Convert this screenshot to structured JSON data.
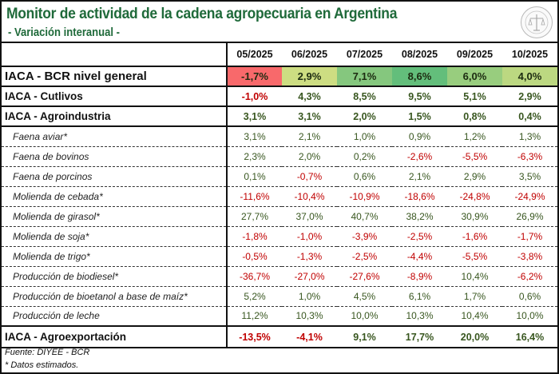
{
  "header": {
    "title": "Monitor de actividad de la cadena agropecuaria en Argentina",
    "subtitle": "- Variación interanual -"
  },
  "table": {
    "columns": [
      "05/2025",
      "06/2025",
      "07/2025",
      "08/2025",
      "09/2025",
      "10/2025"
    ],
    "general": {
      "label": "IACA - BCR nivel general",
      "values": [
        "-1,7%",
        "2,9%",
        "7,1%",
        "8,6%",
        "6,0%",
        "4,0%"
      ],
      "colors": [
        "#f8696b",
        "#cddd82",
        "#85c77e",
        "#63be7b",
        "#98cd7e",
        "#bcd881"
      ]
    },
    "rows": [
      {
        "label": "IACA - Cutlivos",
        "type": "main",
        "values": [
          "-1,0%",
          "4,3%",
          "8,5%",
          "9,5%",
          "5,1%",
          "2,9%"
        ]
      },
      {
        "label": "IACA - Agroindustria",
        "type": "main",
        "values": [
          "3,1%",
          "3,1%",
          "2,0%",
          "1,5%",
          "0,8%",
          "0,4%"
        ]
      },
      {
        "label": "Faena aviar*",
        "type": "sub",
        "values": [
          "3,1%",
          "2,1%",
          "1,0%",
          "0,9%",
          "1,2%",
          "1,3%"
        ]
      },
      {
        "label": "Faena de bovinos",
        "type": "sub",
        "values": [
          "2,3%",
          "2,0%",
          "0,2%",
          "-2,6%",
          "-5,5%",
          "-6,3%"
        ]
      },
      {
        "label": "Faena de porcinos",
        "type": "sub",
        "values": [
          "0,1%",
          "-0,7%",
          "0,6%",
          "2,1%",
          "2,9%",
          "3,5%"
        ]
      },
      {
        "label": "Molienda de cebada*",
        "type": "sub",
        "values": [
          "-11,6%",
          "-10,4%",
          "-10,9%",
          "-18,6%",
          "-24,8%",
          "-24,9%"
        ]
      },
      {
        "label": "Molienda de girasol*",
        "type": "sub",
        "values": [
          "27,7%",
          "37,0%",
          "40,7%",
          "38,2%",
          "30,9%",
          "26,9%"
        ]
      },
      {
        "label": "Molienda de soja*",
        "type": "sub",
        "values": [
          "-1,8%",
          "-1,0%",
          "-3,9%",
          "-2,5%",
          "-1,6%",
          "-1,7%"
        ]
      },
      {
        "label": "Molienda de trigo*",
        "type": "sub",
        "values": [
          "-0,5%",
          "-1,3%",
          "-2,5%",
          "-4,4%",
          "-5,5%",
          "-3,8%"
        ]
      },
      {
        "label": "Producción de biodiesel*",
        "type": "sub",
        "values": [
          "-36,7%",
          "-27,0%",
          "-27,6%",
          "-8,9%",
          "10,4%",
          "-6,2%"
        ]
      },
      {
        "label": "Producción de bioetanol a base de maíz*",
        "type": "sub",
        "values": [
          "5,2%",
          "1,0%",
          "4,5%",
          "6,1%",
          "1,7%",
          "0,6%"
        ]
      },
      {
        "label": "Producción de leche",
        "type": "sub-last",
        "values": [
          "11,2%",
          "10,3%",
          "10,0%",
          "10,3%",
          "10,4%",
          "10,0%"
        ]
      },
      {
        "label": "IACA - Agroexportación",
        "type": "export",
        "values": [
          "-13,5%",
          "-4,1%",
          "9,1%",
          "17,7%",
          "20,0%",
          "16,4%"
        ]
      }
    ]
  },
  "footer": {
    "source": "Fuente: DIYEE - BCR",
    "note": "* Datos estimados."
  },
  "logo": {
    "name": "Bolsa de Comercio de Rosario seal",
    "text": "BOLSA DE COMERCIO DE ROSARIO"
  }
}
